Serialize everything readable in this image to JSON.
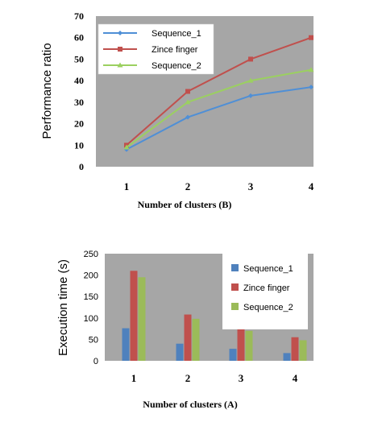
{
  "chart_data": [
    {
      "type": "line",
      "xlabel": "Number of clusters (B)",
      "ylabel": "Performance ratio",
      "categories": [
        "1",
        "2",
        "3",
        "4"
      ],
      "ylim": [
        0,
        70
      ],
      "yticks": [
        "0",
        "10",
        "20",
        "30",
        "40",
        "50",
        "60",
        "70"
      ],
      "grid": false,
      "legend_position": "top-left",
      "series": [
        {
          "name": "Sequence_1",
          "values": [
            8,
            23,
            33,
            37
          ],
          "color": "#4f8fd6",
          "marker": "diamond"
        },
        {
          "name": "Zince finger",
          "values": [
            10,
            35,
            50,
            60
          ],
          "color": "#c0504d",
          "marker": "square"
        },
        {
          "name": "Sequence_2",
          "values": [
            9,
            30,
            40,
            45
          ],
          "color": "#9bd060",
          "marker": "triangle"
        }
      ]
    },
    {
      "type": "bar",
      "xlabel": "Number of clusters (A)",
      "ylabel": "Execution time (s)",
      "categories": [
        "1",
        "2",
        "3",
        "4"
      ],
      "ylim": [
        0,
        250
      ],
      "yticks": [
        "0",
        "50",
        "100",
        "150",
        "200",
        "250"
      ],
      "grid": false,
      "legend_position": "right",
      "series": [
        {
          "name": "Sequence_1",
          "values": [
            76,
            40,
            28,
            18
          ],
          "color": "#4f81bd"
        },
        {
          "name": "Zince finger",
          "values": [
            210,
            108,
            76,
            55
          ],
          "color": "#c0504d"
        },
        {
          "name": "Sequence_2",
          "values": [
            195,
            98,
            70,
            48
          ],
          "color": "#9bbb59"
        }
      ]
    }
  ]
}
